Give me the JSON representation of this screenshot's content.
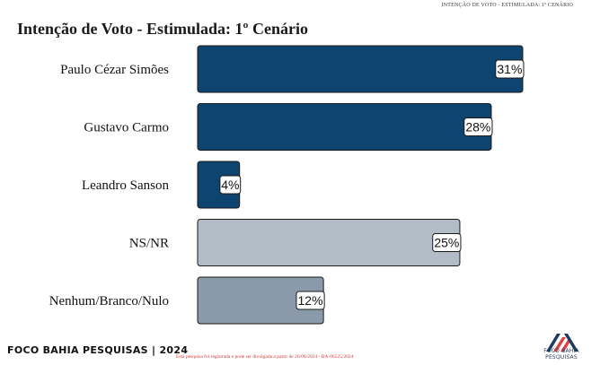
{
  "header": {
    "note": "INTENÇÃO DE VOTO - ESTIMULADA: 1º CENÁRIO"
  },
  "chart_data": {
    "type": "bar",
    "orientation": "horizontal",
    "title": "Intenção de Voto - Estimulada: 1º Cenário",
    "categories": [
      "Paulo Cézar Simões",
      "Gustavo Carmo",
      "Leandro Sanson",
      "NS/NR",
      "Nenhum/Branco/Nulo"
    ],
    "values": [
      31,
      28,
      4,
      25,
      12
    ],
    "value_labels": [
      "31%",
      "28%",
      "4%",
      "25%",
      "12%"
    ],
    "colors": [
      "#0e4470",
      "#0e4470",
      "#0e4470",
      "#b2bcc6",
      "#8a9aab"
    ],
    "unit": "%",
    "xlim": [
      0,
      33
    ],
    "grid": false,
    "legend": "none"
  },
  "footer": {
    "brand": "FOCO BAHIA PESQUISAS | 2024",
    "note": "Esta pesquisa foi registrada e pode ser divulgada a partir de 20/08/2024 - BA-06525/2024",
    "logo_text": "FOCO BAHIA PESQUISAS",
    "logo_colors": [
      "#1f3a5f",
      "#e04040"
    ]
  }
}
